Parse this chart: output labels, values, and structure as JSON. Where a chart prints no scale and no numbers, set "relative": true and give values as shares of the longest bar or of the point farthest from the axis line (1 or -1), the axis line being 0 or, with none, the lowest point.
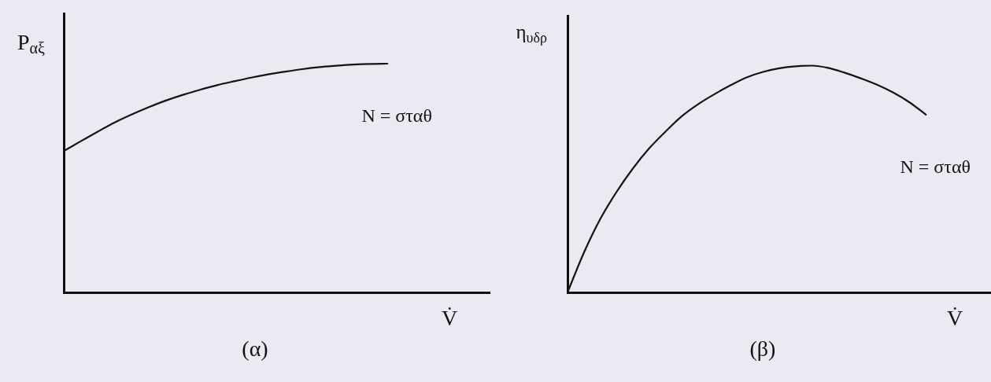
{
  "chart_data": [
    {
      "type": "line",
      "title": "(α)",
      "xlabel": "V̇",
      "ylabel": "P$_{αξ}$",
      "relative": true,
      "categories": [
        null,
        null,
        null,
        null,
        null,
        null,
        null,
        null,
        null,
        null,
        null,
        null,
        null,
        null,
        null,
        null,
        null,
        null,
        null,
        null,
        null,
        null,
        null,
        null,
        null,
        null
      ],
      "series": [
        {
          "name": "N = σταθ",
          "color": "#141414",
          "values": [
            0.618,
            0.661,
            0.703,
            0.743,
            0.778,
            0.81,
            0.839,
            0.864,
            0.886,
            0.906,
            0.923,
            0.939,
            0.953,
            0.965,
            0.976,
            0.985,
            0.991,
            0.996,
            0.999,
            1,
            null,
            null,
            null,
            null,
            null,
            null
          ]
        }
      ]
    },
    {
      "type": "line",
      "title": "(β)",
      "xlabel": "V̇",
      "ylabel": "η$_{υδρ}$",
      "relative": true,
      "categories": [
        null,
        null,
        null,
        null,
        null,
        null,
        null,
        null,
        null,
        null,
        null,
        null,
        null,
        null,
        null,
        null,
        null,
        null,
        null,
        null,
        null,
        null,
        null,
        null,
        null,
        null,
        null
      ],
      "series": [
        {
          "name": "N = σταθ",
          "color": "#141414",
          "values": [
            0,
            0.174,
            0.322,
            0.442,
            0.545,
            0.634,
            0.708,
            0.776,
            0.829,
            0.873,
            0.913,
            0.948,
            0.972,
            0.988,
            0.997,
            1,
            0.99,
            0.969,
            0.944,
            0.916,
            0.881,
            0.838,
            0.784,
            null,
            null,
            null,
            null
          ]
        }
      ]
    }
  ]
}
